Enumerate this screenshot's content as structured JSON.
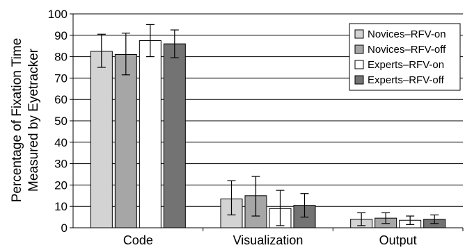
{
  "chart_data": {
    "type": "bar",
    "title": "",
    "xlabel": "",
    "ylabel": "Percentage of Fixation Time",
    "ylabel_line2": "Measured by Eyetracker",
    "ylim": [
      0,
      100
    ],
    "yticks": [
      0,
      10,
      20,
      30,
      40,
      50,
      60,
      70,
      80,
      90,
      100
    ],
    "grid": "horizontal major gridlines",
    "legend_position": "top-right",
    "categories": [
      "Code",
      "Visualization",
      "Output"
    ],
    "series": [
      {
        "name": "Novices–RFV-on",
        "color": "#d3d3d3",
        "values": [
          82.5,
          13.5,
          4
        ],
        "error_low": [
          75,
          6,
          1
        ],
        "error_high": [
          90.5,
          22,
          7
        ]
      },
      {
        "name": "Novices–RFV-off",
        "color": "#a6a6a6",
        "values": [
          81,
          15,
          4.5
        ],
        "error_low": [
          71.5,
          5.5,
          2
        ],
        "error_high": [
          91,
          24,
          7
        ]
      },
      {
        "name": "Experts–RFV-on",
        "color": "#ffffff",
        "values": [
          87.5,
          9,
          3.5
        ],
        "error_low": [
          80,
          1,
          1.5
        ],
        "error_high": [
          95,
          17.5,
          5.5
        ]
      },
      {
        "name": "Experts–RFV-off",
        "color": "#737373",
        "values": [
          86,
          10.5,
          4
        ],
        "error_low": [
          79.5,
          5,
          2
        ],
        "error_high": [
          92.5,
          16,
          6
        ]
      }
    ]
  }
}
